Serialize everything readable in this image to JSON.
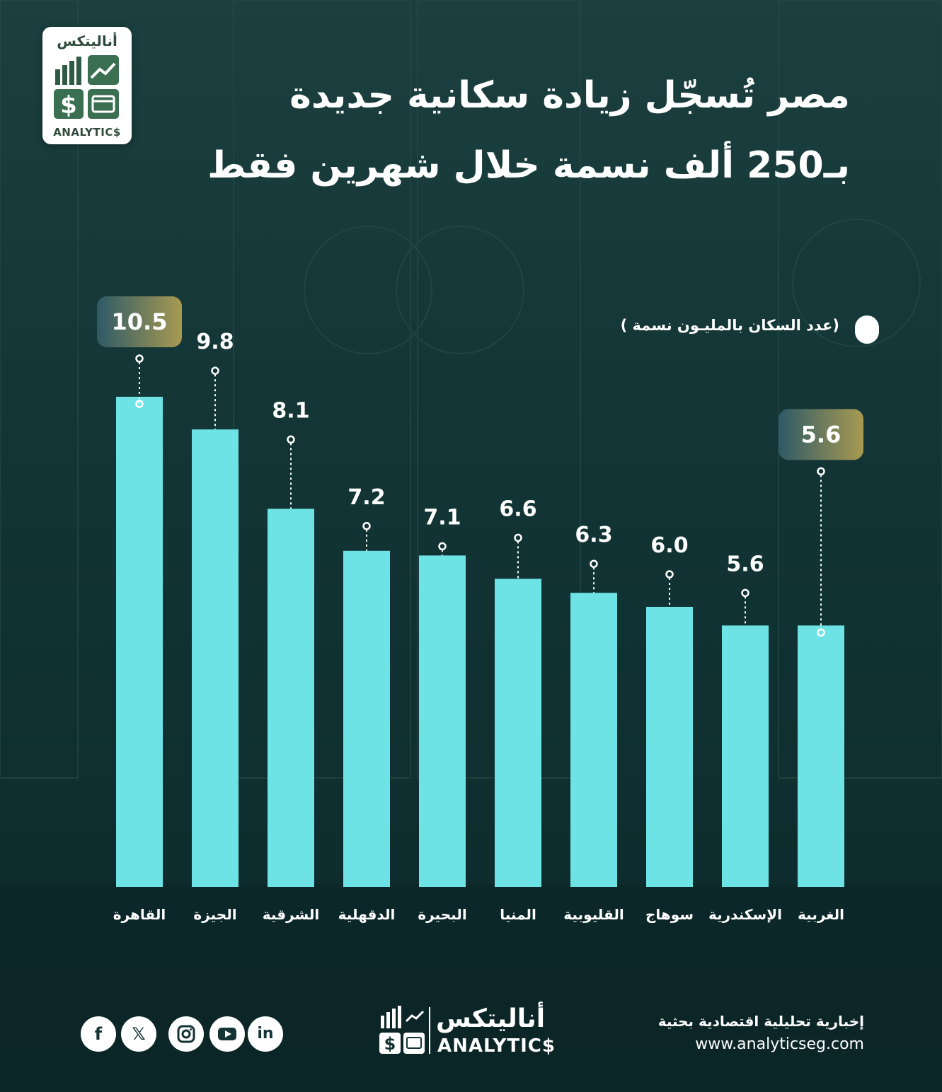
{
  "header": {
    "title_line1": "مصر تُسجّل زيادة سكانية جديدة",
    "title_line2": "بـ250 ألف نسمة خلال شهرين فقط"
  },
  "logo": {
    "text_ar": "أناليتكس",
    "text_en": "ANALYTIC$"
  },
  "legend": {
    "label": "(عدد السكان  بالمليـون نسمة )"
  },
  "chart_data": {
    "type": "bar",
    "ylabel": "عدد السكان بالمليون نسمة",
    "ylim": [
      0,
      11
    ],
    "categories": [
      "القاهرة",
      "الجيزة",
      "الشرقية",
      "الدقهلية",
      "البحيرة",
      "المنيا",
      "القليوبية",
      "سوهاج",
      "الإسكندرية",
      "الغربية"
    ],
    "value_labels": [
      "10.5",
      "9.8",
      "8.1",
      "7.2",
      "7.1",
      "6.6",
      "6.3",
      "6.0",
      "5.6",
      "5.6"
    ],
    "values": [
      10.5,
      9.8,
      8.1,
      7.2,
      7.1,
      6.6,
      6.3,
      6.0,
      5.6,
      5.6
    ],
    "highlighted": [
      "القاهرة",
      "الغربية"
    ],
    "colors": {
      "bar": "#6de3e6",
      "highlight_badge_start": "#2e5a66",
      "highlight_badge_end": "#a89a52",
      "label_text": "#ffffff"
    }
  },
  "footer": {
    "tagline": "إخبارية تحليلية اقتصادية بحثية",
    "url": "www.analyticseg.com",
    "brand_ar": "أناليتكس",
    "brand_en": "ANALYTIC$",
    "social_icons": [
      "facebook-icon",
      "x-icon",
      "instagram-icon",
      "youtube-icon",
      "linkedin-icon"
    ]
  }
}
